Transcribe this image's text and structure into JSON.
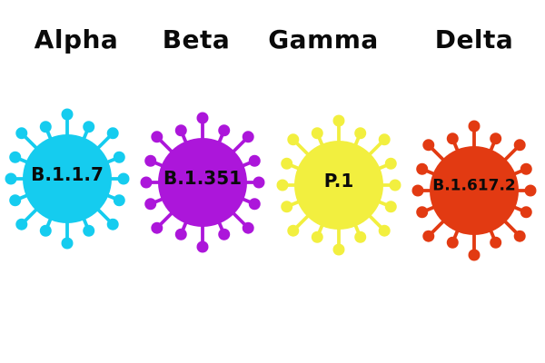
{
  "page": {
    "background": "#ffffff",
    "text_color": "#0a0a0a",
    "description": "Four coronavirus variant illustrations with WHO names above and Pango lineage codes inside each virus particle"
  },
  "variants": [
    {
      "name": "Alpha",
      "code": "B.1.1.7",
      "color": "#15ccef"
    },
    {
      "name": "Beta",
      "code": "B.1.351",
      "color": "#ac16da"
    },
    {
      "name": "Gamma",
      "code": "P.1",
      "color": "#f2ef3f"
    },
    {
      "name": "Delta",
      "code": "B.1.617.2",
      "color": "#e23a12"
    }
  ],
  "icon": {
    "type": "coronavirus-particle",
    "spike_count": 16
  }
}
